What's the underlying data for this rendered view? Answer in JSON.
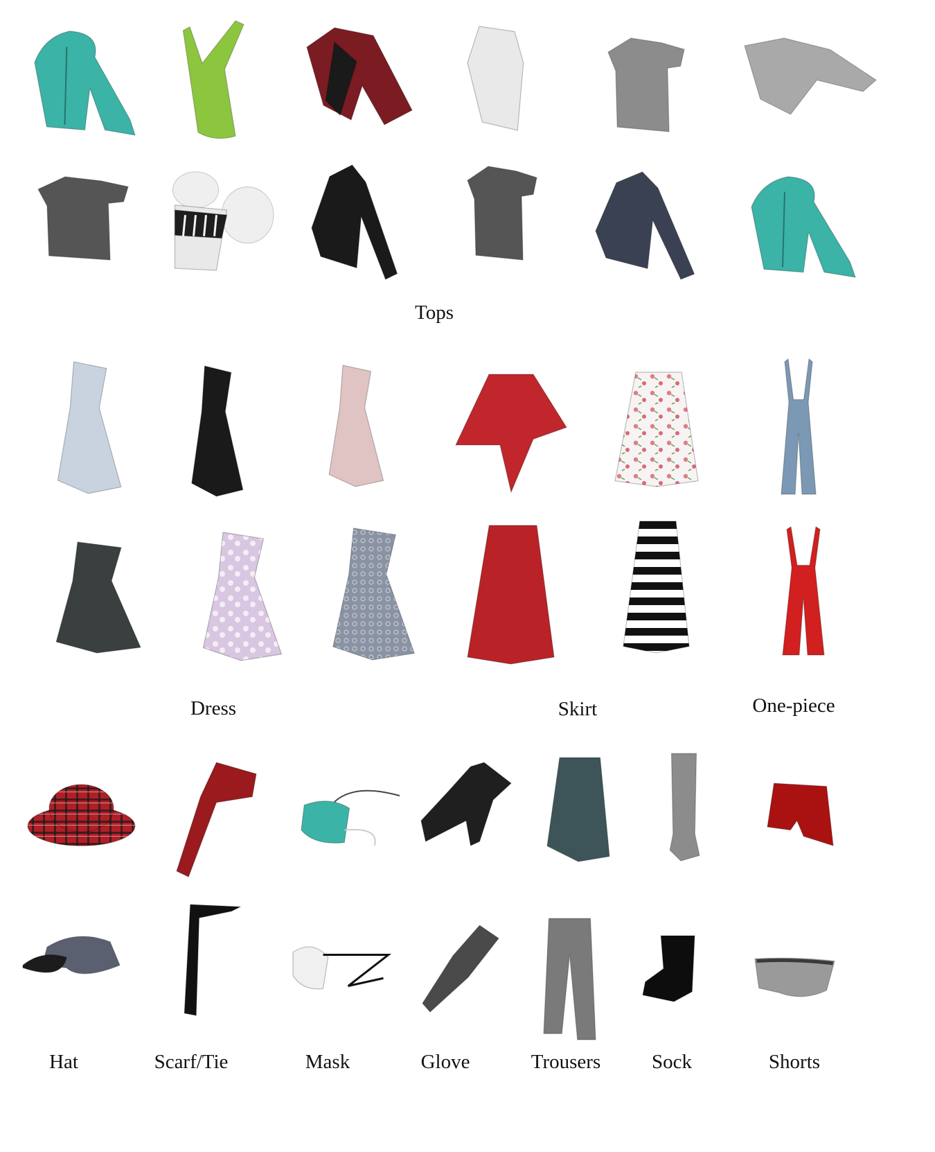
{
  "categories": {
    "tops": "Tops",
    "dress": "Dress",
    "skirt": "Skirt",
    "one_piece": "One-piece",
    "hat": "Hat",
    "scarf_tie": "Scarf/Tie",
    "mask": "Mask",
    "glove": "Glove",
    "trousers": "Trousers",
    "sock": "Sock",
    "shorts": "Shorts"
  },
  "colors": {
    "teal": "#3bb3a6",
    "lime": "#8cc63f",
    "dark_red": "#7a1c22",
    "white": "#e9e9e9",
    "grey": "#8c8c8c",
    "light_grey": "#a9a9a9",
    "dark_grey": "#555555",
    "black": "#1a1a1a",
    "navy": "#3a4152",
    "light_blue": "#c8d3df",
    "blush": "#e0c3c3",
    "red": "#c0262b",
    "denim": "#7b98b4",
    "slate": "#3d5558",
    "lavender": "#d9c6e2"
  },
  "icons": [
    "teal-hoodie",
    "lime-tank-top",
    "red-black-jacket",
    "white-turtleneck",
    "grey-tshirt",
    "grey-wrap-top",
    "grey-ruffle-top",
    "white-striped-puff-top",
    "black-jacket",
    "grey-tee",
    "navy-blazer",
    "teal-blouse",
    "lightblue-dress",
    "black-white-dress",
    "blush-dress",
    "red-skirt",
    "floral-skirt",
    "denim-overalls",
    "dark-grey-dress",
    "lavender-floral-dress",
    "lace-dress",
    "red-long-skirt",
    "striped-skirt",
    "red-jumpsuit",
    "plaid-bucket-hat",
    "red-scarf",
    "teal-mask",
    "black-glove",
    "slate-shorts",
    "grey-sock",
    "red-shorts",
    "black-cap",
    "black-tie",
    "white-mask",
    "grey-glove",
    "grey-trousers",
    "black-sock",
    "grey-briefs"
  ]
}
